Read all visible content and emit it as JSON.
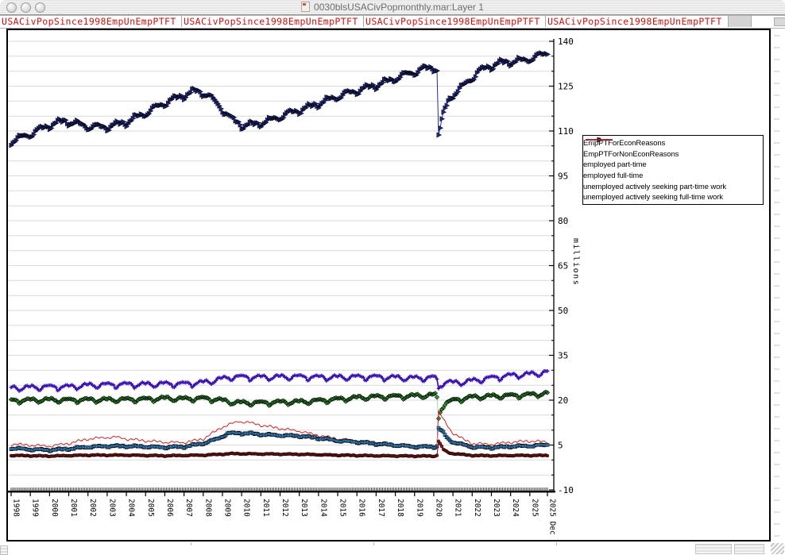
{
  "window": {
    "title": "0030blsUSACivPopmonthly.mar:Layer 1"
  },
  "tabs": [
    "USACivPopSince1998EmpUnEmpPTFT",
    "USACivPopSince1998EmpUnEmpPTFT",
    "USACivPopSince1998EmpUnEmpPTFT",
    "USACivPopSince1998EmpUnEmpPTFT"
  ],
  "chart_data": {
    "type": "line",
    "title": "",
    "xlabel": "",
    "ylabel": "millions",
    "ylim": [
      -10,
      140
    ],
    "y_major_ticks": [
      140,
      125,
      110,
      95,
      80,
      65,
      50,
      35,
      20,
      5,
      -10
    ],
    "y_minor_step": 5,
    "grid": "horizontal, every 5 units, light gray",
    "legend_position": "right",
    "x_start_year": 1998,
    "x_months": 336,
    "x_tick_years": [
      "1998",
      "1999",
      "2000",
      "2001",
      "2002",
      "2003",
      "2004",
      "2005",
      "2006",
      "2007",
      "2008",
      "2009",
      "2010",
      "2011",
      "2012",
      "2013",
      "2014",
      "2015",
      "2016",
      "2017",
      "2018",
      "2019",
      "2020",
      "2021",
      "2022",
      "2023",
      "2024",
      "2025"
    ],
    "x_end_label": "2025 Dec",
    "seasonal_patterns": {
      "emp": [
        -1,
        -0.75,
        -0.3,
        0.1,
        0.45,
        0.95,
        1,
        0.7,
        0.25,
        0.35,
        0.3,
        -0.35
      ],
      "pt": [
        0.55,
        0.75,
        0.65,
        0.25,
        -0.15,
        -1,
        -0.85,
        -0.35,
        0.15,
        0.55,
        0.75,
        0.65
      ]
    },
    "draw_order": [
      3,
      2,
      1,
      5,
      0,
      4
    ],
    "series": [
      {
        "name": "EmpPTForEconReasons",
        "marker": "square",
        "legend_wavy": true,
        "line_color": "#9fc6e8",
        "marker_fill": "#3b8fd4",
        "line_width": 1,
        "season": "emp",
        "season_amp": 0.28,
        "noise": 0.14,
        "anchors": [
          [
            1998,
            3.9
          ],
          [
            1999,
            3.5
          ],
          [
            2000,
            3.3
          ],
          [
            2001,
            3.7
          ],
          [
            2002,
            4.3
          ],
          [
            2003,
            4.6
          ],
          [
            2004,
            4.6
          ],
          [
            2005,
            4.4
          ],
          [
            2006,
            4.2
          ],
          [
            2007,
            4.4
          ],
          [
            2008,
            5.5
          ],
          [
            2008.8,
            7.2
          ],
          [
            2009.3,
            8.9
          ],
          [
            2010,
            8.9
          ],
          [
            2010.5,
            8.8
          ],
          [
            2011,
            8.5
          ],
          [
            2012,
            8.2
          ],
          [
            2013,
            8.0
          ],
          [
            2014,
            7.3
          ],
          [
            2015,
            6.4
          ],
          [
            2016,
            6.0
          ],
          [
            2017,
            5.4
          ],
          [
            2018,
            4.9
          ],
          [
            2019,
            4.4
          ],
          [
            2020.1,
            4.4
          ],
          [
            2020.17,
            4.6
          ],
          [
            2020.25,
            10.7
          ],
          [
            2020.5,
            9.0
          ],
          [
            2020.8,
            6.5
          ],
          [
            2021.2,
            5.6
          ],
          [
            2022,
            4.3
          ],
          [
            2023,
            4.1
          ],
          [
            2024,
            4.5
          ],
          [
            2025,
            4.7
          ],
          [
            2025.92,
            5.0
          ]
        ]
      },
      {
        "name": "EmpPTForNonEconReasons",
        "marker": "diamond",
        "legend_wavy": true,
        "line_color": "#a5d6a5",
        "marker_fill": "#2fa02f",
        "line_width": 1,
        "season": "pt",
        "season_amp": 0.75,
        "noise": 0.15,
        "anchors": [
          [
            1998,
            19.7
          ],
          [
            1999,
            19.9
          ],
          [
            2000,
            20.0
          ],
          [
            2001,
            19.9
          ],
          [
            2002,
            20.0
          ],
          [
            2003,
            20.0
          ],
          [
            2004,
            20.1
          ],
          [
            2005,
            20.2
          ],
          [
            2006,
            20.5
          ],
          [
            2007,
            20.3
          ],
          [
            2008,
            20.5
          ],
          [
            2008.8,
            20.0
          ],
          [
            2009.5,
            19.2
          ],
          [
            2010,
            19.0
          ],
          [
            2011,
            19.0
          ],
          [
            2012,
            19.2
          ],
          [
            2013,
            19.3
          ],
          [
            2014,
            19.7
          ],
          [
            2015,
            20.2
          ],
          [
            2016,
            20.7
          ],
          [
            2017,
            21.0
          ],
          [
            2018,
            21.1
          ],
          [
            2019,
            21.3
          ],
          [
            2020.1,
            21.6
          ],
          [
            2020.17,
            20.5
          ],
          [
            2020.25,
            13.8
          ],
          [
            2020.4,
            17.5
          ],
          [
            2020.6,
            18.8
          ],
          [
            2021,
            19.8
          ],
          [
            2022,
            20.9
          ],
          [
            2023,
            21.2
          ],
          [
            2024,
            21.4
          ],
          [
            2025,
            21.7
          ],
          [
            2025.92,
            22.1
          ]
        ]
      },
      {
        "name": "employed part-time",
        "marker": "plus",
        "legend_wavy": false,
        "line_color": "#3a12b4",
        "marker_fill": "#3a12b4",
        "line_width": 1.7,
        "season": "pt",
        "season_amp": 0.95,
        "noise": 0.18,
        "anchors": [
          [
            1998,
            23.9
          ],
          [
            1999,
            24.1
          ],
          [
            2000,
            24.3
          ],
          [
            2001,
            24.3
          ],
          [
            2002,
            24.8
          ],
          [
            2003,
            25.0
          ],
          [
            2004,
            25.1
          ],
          [
            2005,
            25.1
          ],
          [
            2006,
            25.3
          ],
          [
            2007,
            25.3
          ],
          [
            2008,
            25.7
          ],
          [
            2009,
            27.0
          ],
          [
            2009.5,
            27.6
          ],
          [
            2010,
            27.6
          ],
          [
            2011,
            27.5
          ],
          [
            2012,
            27.6
          ],
          [
            2013,
            27.7
          ],
          [
            2014,
            27.5
          ],
          [
            2015,
            27.5
          ],
          [
            2016,
            27.6
          ],
          [
            2017,
            27.6
          ],
          [
            2018,
            27.4
          ],
          [
            2019,
            27.2
          ],
          [
            2020.1,
            27.4
          ],
          [
            2020.17,
            26.5
          ],
          [
            2020.25,
            23.5
          ],
          [
            2020.4,
            25.5
          ],
          [
            2020.7,
            26.0
          ],
          [
            2021,
            25.6
          ],
          [
            2021.5,
            25.9
          ],
          [
            2022,
            26.3
          ],
          [
            2023,
            27.3
          ],
          [
            2024,
            28.1
          ],
          [
            2025,
            28.5
          ],
          [
            2025.92,
            29.2
          ]
        ]
      },
      {
        "name": "employed full-time",
        "marker": "triangle-right",
        "legend_wavy": false,
        "line_color": "#1e2ca0",
        "marker_fill": "#202a90",
        "line_width": 1,
        "season": "emp",
        "season_amp": 1.1,
        "noise": 0.25,
        "anchors": [
          [
            1998,
            106.3
          ],
          [
            1999,
            108.8
          ],
          [
            2000,
            111.8
          ],
          [
            2000.8,
            113.2
          ],
          [
            2001.5,
            112.2
          ],
          [
            2002,
            111.3
          ],
          [
            2003,
            111.2
          ],
          [
            2004,
            112.8
          ],
          [
            2005,
            115.8
          ],
          [
            2006,
            119.2
          ],
          [
            2007,
            121.8
          ],
          [
            2007.6,
            123.2
          ],
          [
            2008.2,
            122.2
          ],
          [
            2008.8,
            118.5
          ],
          [
            2009.5,
            113.8
          ],
          [
            2010.1,
            111.6
          ],
          [
            2010.8,
            112.2
          ],
          [
            2011.5,
            113.4
          ],
          [
            2012.5,
            115.8
          ],
          [
            2013.5,
            117.8
          ],
          [
            2014.5,
            120.2
          ],
          [
            2015.5,
            122.4
          ],
          [
            2016.5,
            124.2
          ],
          [
            2017.5,
            126.2
          ],
          [
            2018.5,
            128.6
          ],
          [
            2019.5,
            130.6
          ],
          [
            2020.05,
            131.2
          ],
          [
            2020.17,
            130.2
          ],
          [
            2020.25,
            108.6
          ],
          [
            2020.4,
            112.5
          ],
          [
            2020.6,
            117.5
          ],
          [
            2020.9,
            121.5
          ],
          [
            2021.5,
            124.5
          ],
          [
            2022.3,
            129.5
          ],
          [
            2022.8,
            131.2
          ],
          [
            2023.5,
            132.6
          ],
          [
            2024.3,
            133.2
          ],
          [
            2024.8,
            133.6
          ],
          [
            2025.7,
            135.4
          ],
          [
            2025.92,
            135.8
          ]
        ]
      },
      {
        "name": "unemployed actively seeking part-time work",
        "marker": "circle",
        "legend_wavy": false,
        "line_color": "#a31515",
        "marker_fill": "#a31515",
        "line_width": 1.1,
        "season": "emp",
        "season_amp": 0.12,
        "noise": 0.07,
        "anchors": [
          [
            1998,
            1.5
          ],
          [
            2000,
            1.3
          ],
          [
            2002,
            1.6
          ],
          [
            2004,
            1.6
          ],
          [
            2006,
            1.4
          ],
          [
            2008,
            1.6
          ],
          [
            2009.5,
            2.1
          ],
          [
            2011,
            2.0
          ],
          [
            2013,
            1.9
          ],
          [
            2015,
            1.6
          ],
          [
            2017,
            1.4
          ],
          [
            2019,
            1.3
          ],
          [
            2020.1,
            1.3
          ],
          [
            2020.17,
            1.6
          ],
          [
            2020.25,
            6.3
          ],
          [
            2020.5,
            3.5
          ],
          [
            2020.8,
            2.3
          ],
          [
            2021.5,
            1.8
          ],
          [
            2022,
            1.5
          ],
          [
            2023,
            1.4
          ],
          [
            2024,
            1.5
          ],
          [
            2025.92,
            1.5
          ]
        ]
      },
      {
        "name": "unemployed actively seeking full-time work",
        "marker": "none",
        "legend_wavy": false,
        "line_color": "#cc2424",
        "marker_fill": "#cc2424",
        "line_width": 1,
        "season": "emp",
        "season_amp": 0.3,
        "noise": 0.28,
        "anchors": [
          [
            1998,
            5.3
          ],
          [
            1999,
            4.9
          ],
          [
            2000,
            4.6
          ],
          [
            2001,
            5.5
          ],
          [
            2002,
            7.0
          ],
          [
            2003,
            7.5
          ],
          [
            2003.5,
            7.6
          ],
          [
            2004,
            7.0
          ],
          [
            2005,
            6.4
          ],
          [
            2006,
            5.9
          ],
          [
            2007,
            5.8
          ],
          [
            2008,
            7.0
          ],
          [
            2009,
            11.0
          ],
          [
            2009.8,
            12.8
          ],
          [
            2010.3,
            12.6
          ],
          [
            2011,
            11.6
          ],
          [
            2012,
            10.5
          ],
          [
            2013,
            9.6
          ],
          [
            2014,
            8.2
          ],
          [
            2015,
            7.0
          ],
          [
            2016,
            6.3
          ],
          [
            2017,
            5.7
          ],
          [
            2018,
            5.1
          ],
          [
            2019,
            4.8
          ],
          [
            2020.1,
            4.6
          ],
          [
            2020.17,
            5.5
          ],
          [
            2020.25,
            16.2
          ],
          [
            2020.5,
            13.5
          ],
          [
            2020.9,
            9.5
          ],
          [
            2021.5,
            7.0
          ],
          [
            2022,
            5.5
          ],
          [
            2023,
            5.2
          ],
          [
            2024,
            5.9
          ],
          [
            2025,
            6.3
          ],
          [
            2025.92,
            6.0
          ]
        ]
      }
    ]
  }
}
